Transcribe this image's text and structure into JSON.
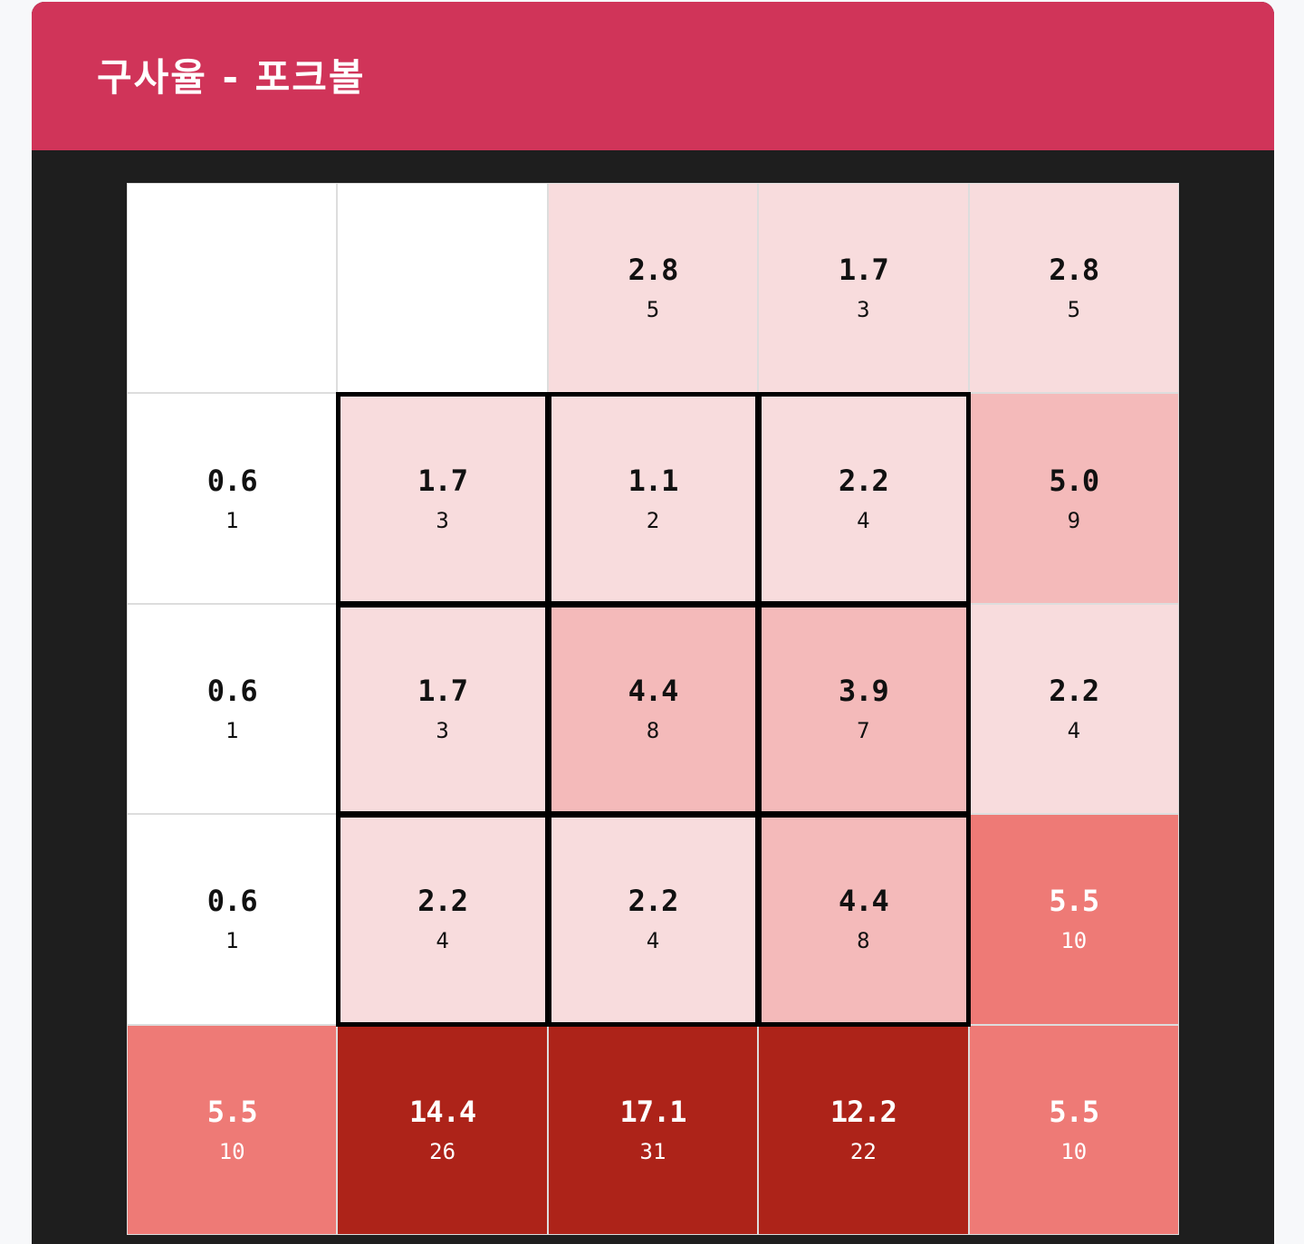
{
  "header": {
    "title": "구사율 - 포크볼"
  },
  "colors": {
    "header_bg": "#d03459",
    "panel_bg": "#1e1e1e",
    "level_0": "#ffffff",
    "level_1": "#f8dcdd",
    "level_2": "#f4baba",
    "level_3": "#ee7a76",
    "level_4": "#ad2319"
  },
  "chart_data": {
    "type": "heatmap",
    "title": "구사율 - 포크볼",
    "rows": 5,
    "cols": 5,
    "strike_zone": {
      "row_start": 1,
      "row_end": 3,
      "col_start": 1,
      "col_end": 3
    },
    "cells": [
      [
        {
          "pct": "",
          "count": "",
          "level": 0
        },
        {
          "pct": "",
          "count": "",
          "level": 0
        },
        {
          "pct": "2.8",
          "count": "5",
          "level": 1
        },
        {
          "pct": "1.7",
          "count": "3",
          "level": 1
        },
        {
          "pct": "2.8",
          "count": "5",
          "level": 1
        }
      ],
      [
        {
          "pct": "0.6",
          "count": "1",
          "level": 0
        },
        {
          "pct": "1.7",
          "count": "3",
          "level": 1
        },
        {
          "pct": "1.1",
          "count": "2",
          "level": 1
        },
        {
          "pct": "2.2",
          "count": "4",
          "level": 1
        },
        {
          "pct": "5.0",
          "count": "9",
          "level": 2
        }
      ],
      [
        {
          "pct": "0.6",
          "count": "1",
          "level": 0
        },
        {
          "pct": "1.7",
          "count": "3",
          "level": 1
        },
        {
          "pct": "4.4",
          "count": "8",
          "level": 2
        },
        {
          "pct": "3.9",
          "count": "7",
          "level": 2
        },
        {
          "pct": "2.2",
          "count": "4",
          "level": 1
        }
      ],
      [
        {
          "pct": "0.6",
          "count": "1",
          "level": 0
        },
        {
          "pct": "2.2",
          "count": "4",
          "level": 1
        },
        {
          "pct": "2.2",
          "count": "4",
          "level": 1
        },
        {
          "pct": "4.4",
          "count": "8",
          "level": 2
        },
        {
          "pct": "5.5",
          "count": "10",
          "level": 3
        }
      ],
      [
        {
          "pct": "5.5",
          "count": "10",
          "level": 3
        },
        {
          "pct": "14.4",
          "count": "26",
          "level": 4
        },
        {
          "pct": "17.1",
          "count": "31",
          "level": 4
        },
        {
          "pct": "12.2",
          "count": "22",
          "level": 4
        },
        {
          "pct": "5.5",
          "count": "10",
          "level": 3
        }
      ]
    ]
  }
}
